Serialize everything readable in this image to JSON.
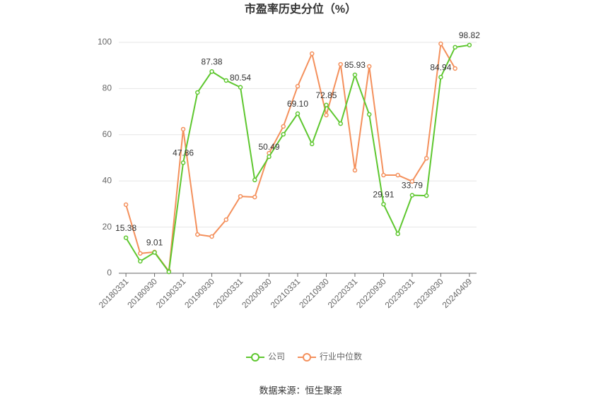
{
  "chart_data": {
    "type": "line",
    "title": "市盈率历史分位（%）",
    "categories": [
      "20180331",
      null,
      "20180930",
      null,
      "20190331",
      null,
      "20190930",
      null,
      "20200331",
      null,
      "20200930",
      null,
      "20210331",
      null,
      "20210930",
      null,
      "20220331",
      null,
      "20220930",
      null,
      "20230331",
      null,
      "20230930",
      null,
      "20240409"
    ],
    "series": [
      {
        "name": "公司",
        "color": "#5ec72f",
        "values": [
          15.38,
          5.2,
          9.01,
          0.6,
          47.86,
          78.3,
          87.38,
          83.5,
          80.54,
          40.4,
          50.49,
          60.2,
          69.1,
          56.0,
          72.85,
          64.8,
          85.93,
          68.8,
          29.91,
          17.1,
          33.79,
          33.6,
          84.94,
          97.9,
          98.82
        ],
        "value_labels": [
          "15.38",
          null,
          "9.01",
          null,
          "47.86",
          null,
          "87.38",
          null,
          "80.54",
          null,
          "50.49",
          null,
          "69.10",
          null,
          "72.85",
          null,
          "85.93",
          null,
          "29.91",
          null,
          "33.79",
          null,
          "84.94",
          null,
          "98.82"
        ]
      },
      {
        "name": "行业中位数",
        "color": "#f4905c",
        "values": [
          29.7,
          8.6,
          9.2,
          0.9,
          62.4,
          16.8,
          15.9,
          23.2,
          33.3,
          33.0,
          52.0,
          63.6,
          81.0,
          95.1,
          68.5,
          90.5,
          44.6,
          89.6,
          42.5,
          42.5,
          39.8,
          49.8,
          99.4,
          88.7,
          null
        ]
      }
    ],
    "ylim": [
      0,
      100
    ],
    "yticks": [
      0,
      20,
      40,
      60,
      80,
      100
    ],
    "grid": true,
    "source": "数据来源：恒生聚源"
  }
}
